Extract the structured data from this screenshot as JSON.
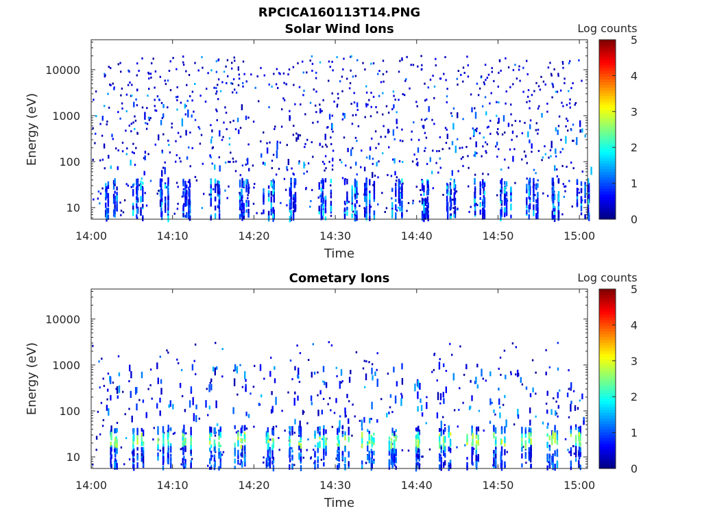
{
  "figure": {
    "title": "RPCICA160113T14.PNG"
  },
  "chart_data": [
    {
      "type": "heatmap",
      "title": "Solar Wind Ions",
      "xlabel": "Time",
      "ylabel": "Energy (eV)",
      "xticks": [
        "14:00",
        "14:10",
        "14:20",
        "14:30",
        "14:40",
        "14:50",
        "15:00"
      ],
      "xlim_minutes": [
        0,
        61
      ],
      "yscale": "log",
      "ylim": [
        5.6,
        45000
      ],
      "yticks": [
        10,
        100,
        1000,
        10000
      ],
      "ytick_labels": [
        "10",
        "100",
        "1000",
        "10000"
      ],
      "colorbar": {
        "label": "Log counts",
        "range": [
          0,
          5
        ],
        "ticks": [
          "0",
          "1",
          "2",
          "3",
          "4",
          "5"
        ],
        "colormap": "jet"
      },
      "bursts_minutes": [
        2.3,
        5.8,
        9.0,
        11.7,
        15.2,
        18.5,
        21.8,
        25.0,
        28.6,
        31.8,
        34.3,
        37.5,
        40.8,
        44.3,
        47.6,
        50.8,
        54.2,
        57.3,
        60.3
      ],
      "description_values": "sparse background counts (log 0-1) from ~10 to ~20000 eV; bursts of log 1-2 at 10-40 eV"
    },
    {
      "type": "heatmap",
      "title": "Cometary Ions",
      "xlabel": "Time",
      "ylabel": "Energy (eV)",
      "xticks": [
        "14:00",
        "14:10",
        "14:20",
        "14:30",
        "14:40",
        "14:50",
        "15:00"
      ],
      "xlim_minutes": [
        0,
        61
      ],
      "yscale": "log",
      "ylim": [
        5.6,
        45000
      ],
      "yticks": [
        10,
        100,
        1000,
        10000
      ],
      "ytick_labels": [
        "10",
        "100",
        "1000",
        "10000"
      ],
      "colorbar": {
        "label": "Log counts",
        "range": [
          0,
          5
        ],
        "ticks": [
          "0",
          "1",
          "2",
          "3",
          "4",
          "5"
        ],
        "colormap": "jet"
      },
      "bursts_minutes": [
        2.3,
        5.6,
        8.9,
        11.8,
        15.1,
        18.3,
        21.6,
        24.9,
        28.0,
        30.9,
        34.0,
        37.1,
        40.2,
        43.5,
        46.8,
        50.0,
        53.4,
        56.4,
        59.5
      ],
      "description_values": "bursts of log 1.5-3 at 15-40 eV every ~3 min; sparse counts up to ~3000 eV"
    }
  ]
}
